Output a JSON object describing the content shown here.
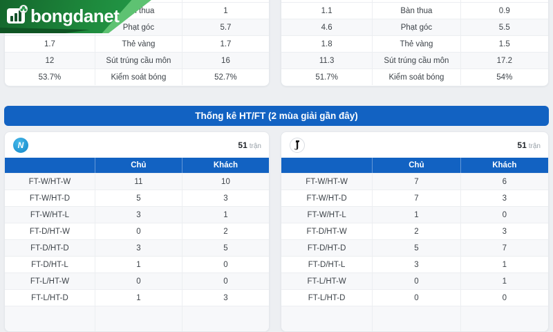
{
  "colors": {
    "accent_blue": "#1262c2",
    "brand_green": "#1e8a3d",
    "brand_green_light": "#5ec272",
    "napoli_blue": "#1ba2dd",
    "alt_row": "#f7f8fa"
  },
  "logo": {
    "text": "bongdanet",
    "icon": "bar-chart-football-icon"
  },
  "top_stats": {
    "left": {
      "rows": [
        {
          "home": "",
          "label": "Bàn thua",
          "away": "1"
        },
        {
          "home": "",
          "label": "Phạt góc",
          "away": "5.7"
        },
        {
          "home": "1.7",
          "label": "Thẻ vàng",
          "away": "1.7"
        },
        {
          "home": "12",
          "label": "Sút trúng cầu môn",
          "away": "16"
        },
        {
          "home": "53.7%",
          "label": "Kiểm soát bóng",
          "away": "52.7%"
        }
      ]
    },
    "right": {
      "rows": [
        {
          "home": "1.1",
          "label": "Bàn thua",
          "away": "0.9"
        },
        {
          "home": "4.6",
          "label": "Phạt góc",
          "away": "5.5"
        },
        {
          "home": "1.8",
          "label": "Thẻ vàng",
          "away": "1.5"
        },
        {
          "home": "11.3",
          "label": "Sút trúng cầu môn",
          "away": "17.2"
        },
        {
          "home": "51.7%",
          "label": "Kiểm soát bóng",
          "away": "54%"
        }
      ]
    }
  },
  "section_title": "Thống kê HT/FT (2 mùa giải gần đây)",
  "htft_columns": {
    "home": "Chủ",
    "away": "Khách"
  },
  "htft": {
    "left": {
      "badge_icon": "napoli-badge-icon",
      "badge_letter": "N",
      "matches": "51",
      "matches_unit": "trận",
      "rows": [
        {
          "label": "FT-W/HT-W",
          "home": "11",
          "away": "10"
        },
        {
          "label": "FT-W/HT-D",
          "home": "5",
          "away": "3"
        },
        {
          "label": "FT-W/HT-L",
          "home": "3",
          "away": "1"
        },
        {
          "label": "FT-D/HT-W",
          "home": "0",
          "away": "2"
        },
        {
          "label": "FT-D/HT-D",
          "home": "3",
          "away": "5"
        },
        {
          "label": "FT-D/HT-L",
          "home": "1",
          "away": "0"
        },
        {
          "label": "FT-L/HT-W",
          "home": "0",
          "away": "0"
        },
        {
          "label": "FT-L/HT-D",
          "home": "1",
          "away": "3"
        }
      ]
    },
    "right": {
      "badge_icon": "juventus-badge-icon",
      "badge_letter": "J",
      "matches": "51",
      "matches_unit": "trận",
      "rows": [
        {
          "label": "FT-W/HT-W",
          "home": "7",
          "away": "6"
        },
        {
          "label": "FT-W/HT-D",
          "home": "7",
          "away": "3"
        },
        {
          "label": "FT-W/HT-L",
          "home": "1",
          "away": "0"
        },
        {
          "label": "FT-D/HT-W",
          "home": "2",
          "away": "3"
        },
        {
          "label": "FT-D/HT-D",
          "home": "5",
          "away": "7"
        },
        {
          "label": "FT-D/HT-L",
          "home": "3",
          "away": "1"
        },
        {
          "label": "FT-L/HT-W",
          "home": "0",
          "away": "1"
        },
        {
          "label": "FT-L/HT-D",
          "home": "0",
          "away": "0"
        }
      ]
    }
  }
}
